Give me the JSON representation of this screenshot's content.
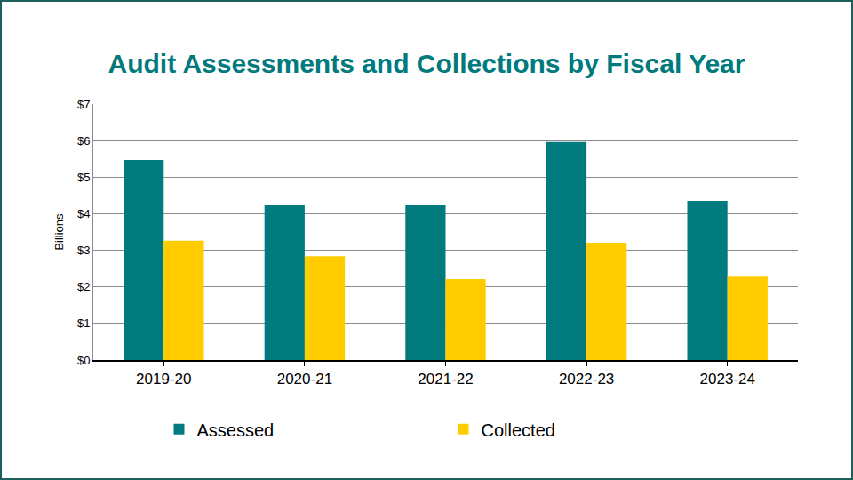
{
  "chart_data": {
    "type": "bar",
    "title": "Audit Assessments and Collections by Fiscal Year",
    "y_label": "Billions",
    "categories": [
      "2019-20",
      "2020-21",
      "2021-22",
      "2022-23",
      "2023-24"
    ],
    "series": [
      {
        "name": "Assessed",
        "color": "#007a7d",
        "values": [
          5.47,
          4.23,
          4.23,
          5.96,
          4.35
        ]
      },
      {
        "name": "Collected",
        "color": "#ffcc00",
        "values": [
          3.26,
          2.84,
          2.21,
          3.21,
          2.28
        ]
      }
    ],
    "ylim": [
      0,
      7
    ],
    "yticks": [
      {
        "value": 0,
        "label": "$0"
      },
      {
        "value": 1,
        "label": "$1"
      },
      {
        "value": 2,
        "label": "$2"
      },
      {
        "value": 3,
        "label": "$3"
      },
      {
        "value": 4,
        "label": "$4"
      },
      {
        "value": 5,
        "label": "$5"
      },
      {
        "value": 6,
        "label": "$6"
      },
      {
        "value": 7,
        "label": "$7"
      }
    ],
    "grid": true,
    "legend": "bottom"
  }
}
